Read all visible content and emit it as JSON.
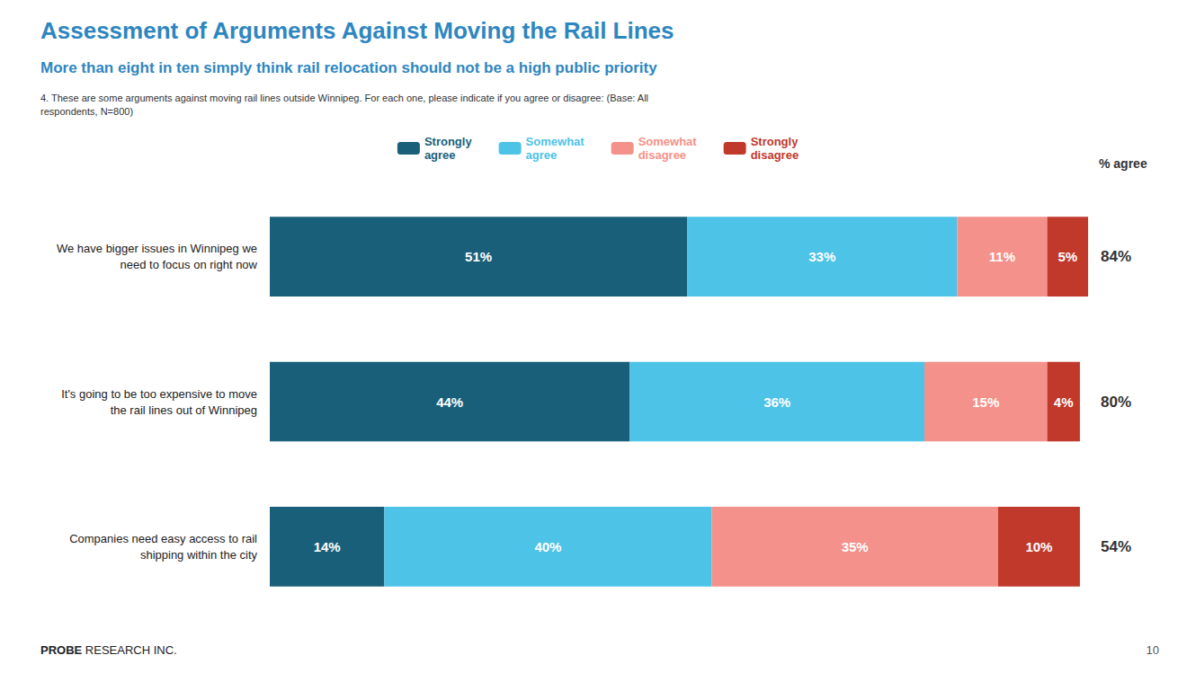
{
  "chart_data": {
    "type": "bar",
    "orientation": "horizontal",
    "stacked": true,
    "data_labels": true,
    "grid": false,
    "tick_labels": "y",
    "legend": "top",
    "title": "Assessment of Arguments Against Moving the Rail Lines",
    "subtitle": "More than eight in ten simply think rail relocation should not be a high public priority",
    "footnote": "4. These are some arguments against moving rail lines outside Winnipeg. For each one, please indicate if you agree or disagree: (Base: All\nrespondents, N=800)",
    "footer": "PROBE RESEARCH INC.",
    "page_number": "10",
    "categories": [
      "We have bigger issues in Winnipeg we\nneed to focus on right now",
      "It's going to be too expensive to move\nthe rail lines out of Winnipeg",
      "Companies need easy access to rail\nshipping within the city"
    ],
    "xlim": [
      0,
      100
    ],
    "series": [
      {
        "name": "Strongly\nagree",
        "color": "#1a5f7a",
        "values": [
          51,
          44,
          14
        ],
        "value_labels": [
          "51%",
          "44%",
          "14%"
        ]
      },
      {
        "name": "Somewhat\nagree",
        "color": "#4dc3e8",
        "values": [
          33,
          36,
          40
        ],
        "value_labels": [
          "33%",
          "36%",
          "40%"
        ]
      },
      {
        "name": "Somewhat\ndisagree",
        "color": "#f4918a",
        "values": [
          11,
          15,
          35
        ],
        "value_labels": [
          "11%",
          "15%",
          "35%"
        ]
      },
      {
        "name": "Strongly\ndisagree",
        "color": "#c0392b",
        "values": [
          5,
          4,
          10
        ],
        "value_labels": [
          "5%",
          "4%",
          "10%"
        ]
      }
    ],
    "agree": {
      "label": "% agree",
      "color": "#333333",
      "values": [
        84,
        80,
        54
      ],
      "value_labels": [
        "84%",
        "80%",
        "54%"
      ]
    },
    "title_color": "#2e86c1",
    "subtitle_color": "#2e86c1",
    "footnote_color": "#333333"
  }
}
